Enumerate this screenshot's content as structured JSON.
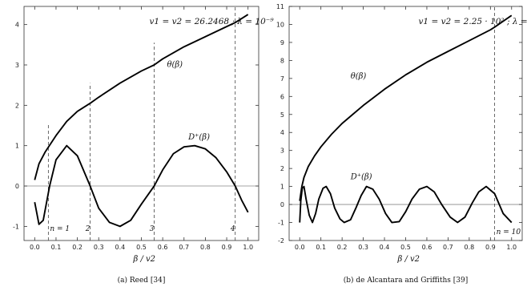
{
  "chart_data": [
    {
      "type": "line",
      "title": "v1 = v2 = 26.2468 ; λ = 10⁻⁹",
      "caption": "(a) Reed [34]",
      "xlabel": "β / v2",
      "ylabel": "",
      "xlim": [
        -0.05,
        1.05
      ],
      "ylim": [
        -1.35,
        4.45
      ],
      "xticks": [
        "0.0",
        "0.1",
        "0.2",
        "0.3",
        "0.4",
        "0.5",
        "0.6",
        "0.7",
        "0.8",
        "0.9",
        "1.0"
      ],
      "yticks": [
        "-1",
        "0",
        "1",
        "2",
        "3",
        "4"
      ],
      "grid": false,
      "series": [
        {
          "name": "θ(β)",
          "x": [
            0.0,
            0.02,
            0.05,
            0.1,
            0.15,
            0.2,
            0.26,
            0.3,
            0.4,
            0.5,
            0.56,
            0.6,
            0.7,
            0.8,
            0.9,
            0.94,
            1.0
          ],
          "y": [
            0.15,
            0.55,
            0.85,
            1.25,
            1.6,
            1.85,
            2.05,
            2.2,
            2.55,
            2.85,
            3.0,
            3.15,
            3.45,
            3.7,
            3.95,
            4.05,
            4.25
          ]
        },
        {
          "name": "D⁺(β)",
          "x": [
            0.0,
            0.02,
            0.04,
            0.07,
            0.1,
            0.15,
            0.2,
            0.26,
            0.3,
            0.35,
            0.4,
            0.45,
            0.5,
            0.56,
            0.6,
            0.65,
            0.7,
            0.75,
            0.8,
            0.85,
            0.9,
            0.94,
            0.97,
            1.0
          ],
          "y": [
            -0.4,
            -0.95,
            -0.85,
            0.0,
            0.65,
            1.0,
            0.75,
            0.0,
            -0.55,
            -0.9,
            -1.0,
            -0.85,
            -0.45,
            0.0,
            0.4,
            0.8,
            0.97,
            1.0,
            0.92,
            0.7,
            0.35,
            0.0,
            -0.35,
            -0.65
          ]
        }
      ],
      "hline": 0,
      "vlines": [
        {
          "x": 0.064,
          "y_top": 1.55,
          "label": "n = 1"
        },
        {
          "x": 0.26,
          "y_top": 2.55,
          "label": "2"
        },
        {
          "x": 0.56,
          "y_top": 3.55,
          "label": "3"
        },
        {
          "x": 0.94,
          "y_top": 4.45,
          "label": "4"
        }
      ],
      "annotations": [
        {
          "text": "θ(β)",
          "x": 0.62,
          "y": 2.95
        },
        {
          "text": "D⁺(β)",
          "x": 0.72,
          "y": 1.15
        }
      ]
    },
    {
      "type": "line",
      "title": "v1 = v2 = 2.25 · 10² ; λ = 10⁻⁹",
      "caption": "(b) de Alcantara and Griffiths [39]",
      "xlabel": "β / v2",
      "ylabel": "",
      "xlim": [
        -0.05,
        1.05
      ],
      "ylim": [
        -2.0,
        11.0
      ],
      "xticks": [
        "0.0",
        "0.1",
        "0.2",
        "0.3",
        "0.4",
        "0.5",
        "0.6",
        "0.7",
        "0.8",
        "0.9",
        "1.0"
      ],
      "yticks": [
        "-2",
        "-1",
        "0",
        "1",
        "2",
        "3",
        "4",
        "5",
        "6",
        "7",
        "8",
        "9",
        "10",
        "11"
      ],
      "grid": false,
      "series": [
        {
          "name": "θ(β)",
          "x": [
            0.0,
            0.01,
            0.02,
            0.04,
            0.07,
            0.1,
            0.15,
            0.2,
            0.25,
            0.3,
            0.4,
            0.5,
            0.6,
            0.7,
            0.8,
            0.9,
            0.92,
            1.0
          ],
          "y": [
            0.2,
            1.0,
            1.5,
            2.1,
            2.7,
            3.2,
            3.9,
            4.5,
            5.0,
            5.5,
            6.4,
            7.2,
            7.9,
            8.5,
            9.1,
            9.7,
            9.85,
            10.5
          ]
        },
        {
          "name": "D⁺(β)",
          "x": [
            0.0,
            0.005,
            0.012,
            0.02,
            0.03,
            0.045,
            0.06,
            0.075,
            0.09,
            0.11,
            0.125,
            0.145,
            0.165,
            0.19,
            0.21,
            0.24,
            0.265,
            0.29,
            0.315,
            0.345,
            0.375,
            0.405,
            0.435,
            0.47,
            0.5,
            0.53,
            0.565,
            0.6,
            0.635,
            0.67,
            0.71,
            0.745,
            0.78,
            0.815,
            0.845,
            0.88,
            0.92,
            0.96,
            1.0
          ],
          "y": [
            -1.0,
            0.2,
            0.9,
            1.0,
            0.3,
            -0.6,
            -1.0,
            -0.5,
            0.3,
            0.9,
            1.0,
            0.6,
            -0.2,
            -0.8,
            -1.0,
            -0.85,
            -0.2,
            0.5,
            1.0,
            0.85,
            0.3,
            -0.5,
            -1.0,
            -0.95,
            -0.4,
            0.3,
            0.85,
            1.0,
            0.7,
            0.0,
            -0.7,
            -1.0,
            -0.7,
            0.1,
            0.7,
            1.0,
            0.6,
            -0.5,
            -1.0
          ]
        }
      ],
      "hline": 0,
      "vlines": [
        {
          "x": 0.92,
          "y_top": 11.0,
          "label": "n = 10"
        }
      ],
      "annotations": [
        {
          "text": "θ(β)",
          "x": 0.24,
          "y": 7.0
        },
        {
          "text": "D⁺(β)",
          "x": 0.24,
          "y": 1.4
        }
      ]
    }
  ]
}
